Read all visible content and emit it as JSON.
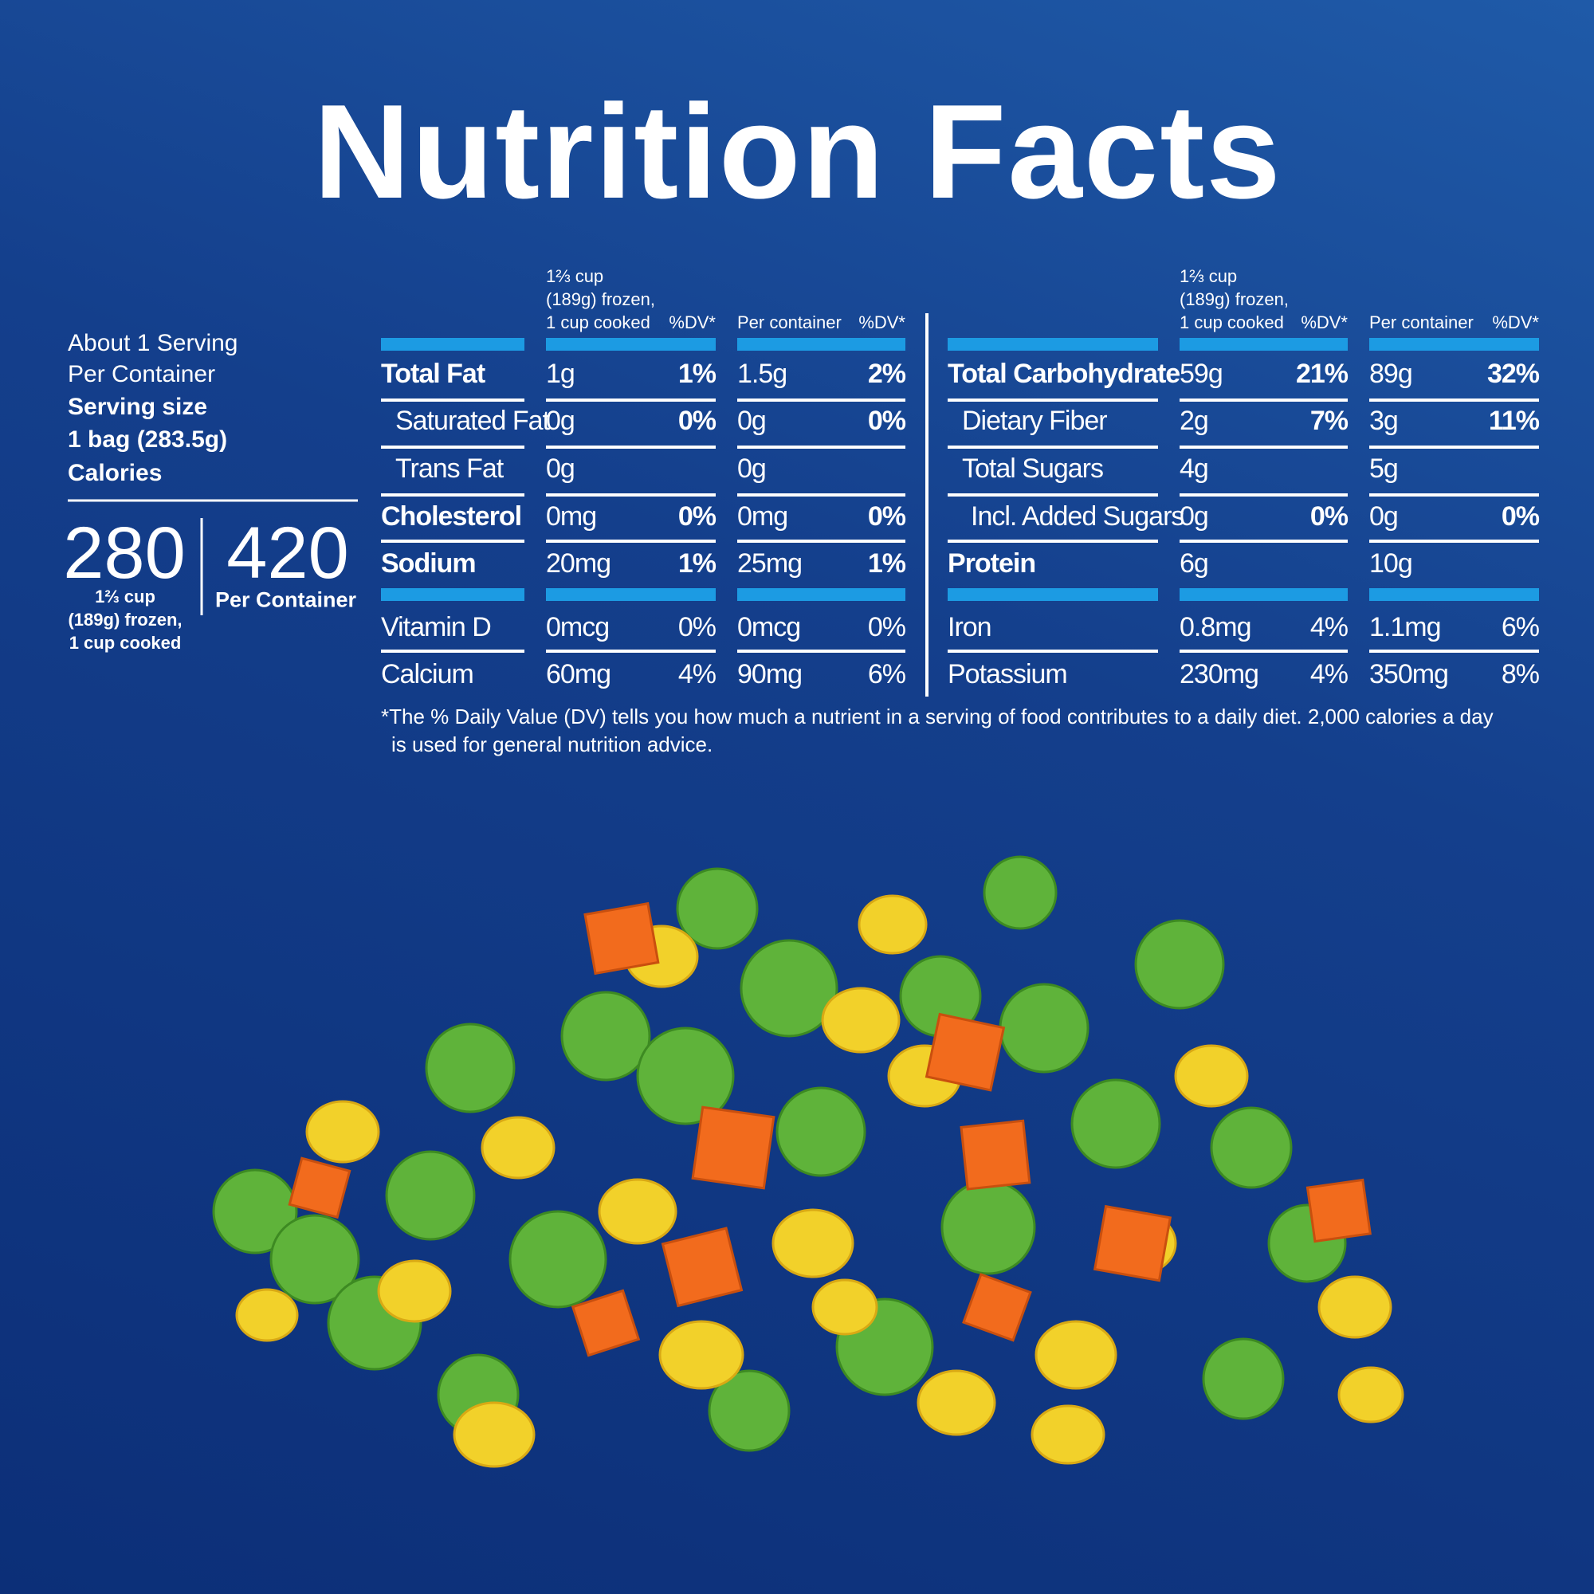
{
  "title": "Nutrition Facts",
  "servings": [
    "About 1 Serving",
    "Per Container"
  ],
  "serving_size": {
    "label": "Serving size",
    "value": "1 bag (283.5g)"
  },
  "calories": {
    "label": "Calories",
    "serving": {
      "value": "280",
      "note": [
        "1⅔ cup",
        "(189g) frozen,",
        "1 cup cooked"
      ]
    },
    "container": {
      "value": "420",
      "note": "Per Container"
    }
  },
  "tables": [
    {
      "header": {
        "serving": [
          "1⅔ cup",
          "(189g) frozen,",
          "1 cup cooked"
        ],
        "serving_dv": "%DV*",
        "container": "Per container",
        "container_dv": "%DV*"
      },
      "nutrients": [
        {
          "name": "Total Fat",
          "bold": true,
          "indent": 0,
          "amount": "1g",
          "dv": "1%",
          "amount_container": "1.5g",
          "dv_container": "2%"
        },
        {
          "name": "Saturated Fat",
          "bold": false,
          "indent": 1,
          "amount": "0g",
          "dv": "0%",
          "amount_container": "0g",
          "dv_container": "0%"
        },
        {
          "name": "Trans Fat",
          "bold": false,
          "indent": 1,
          "amount": "0g",
          "amount_container": "0g"
        },
        {
          "name": "Cholesterol",
          "bold": true,
          "indent": 0,
          "amount": "0mg",
          "dv": "0%",
          "amount_container": "0mg",
          "dv_container": "0%"
        },
        {
          "name": "Sodium",
          "bold": true,
          "indent": 0,
          "amount": "20mg",
          "dv": "1%",
          "amount_container": "25mg",
          "dv_container": "1%"
        }
      ],
      "vitamins": [
        {
          "name": "Vitamin D",
          "bold": false,
          "indent": 0,
          "amount": "0mcg",
          "dv": "0%",
          "amount_container": "0mcg",
          "dv_container": "0%"
        },
        {
          "name": "Calcium",
          "bold": false,
          "indent": 0,
          "amount": "60mg",
          "dv": "4%",
          "amount_container": "90mg",
          "dv_container": "6%"
        }
      ]
    },
    {
      "header": {
        "serving": [
          "1⅔ cup",
          "(189g) frozen,",
          "1 cup cooked"
        ],
        "serving_dv": "%DV*",
        "container": "Per container",
        "container_dv": "%DV*"
      },
      "nutrients": [
        {
          "name": "Total Carbohydrate",
          "bold": true,
          "indent": 0,
          "amount": "59g",
          "dv": "21%",
          "amount_container": "89g",
          "dv_container": "32%"
        },
        {
          "name": "Dietary Fiber",
          "bold": false,
          "indent": 1,
          "amount": "2g",
          "dv": "7%",
          "amount_container": "3g",
          "dv_container": "11%"
        },
        {
          "name": "Total Sugars",
          "bold": false,
          "indent": 1,
          "amount": "4g",
          "amount_container": "5g"
        },
        {
          "name": "Incl. Added Sugars",
          "bold": false,
          "indent": 2,
          "amount": "0g",
          "dv": "0%",
          "amount_container": "0g",
          "dv_container": "0%"
        },
        {
          "name": "Protein",
          "bold": true,
          "indent": 0,
          "amount": "6g",
          "amount_container": "10g"
        }
      ],
      "vitamins": [
        {
          "name": "Iron",
          "bold": false,
          "indent": 0,
          "amount": "0.8mg",
          "dv": "4%",
          "amount_container": "1.1mg",
          "dv_container": "6%"
        },
        {
          "name": "Potassium",
          "bold": false,
          "indent": 0,
          "amount": "230mg",
          "dv": "4%",
          "amount_container": "350mg",
          "dv_container": "8%"
        }
      ]
    }
  ],
  "footnote": [
    "*The % Daily Value (DV) tells you how much a nutrient in a serving of food contributes to a daily diet. 2,000 calories a day",
    "is used for general nutrition advice."
  ]
}
